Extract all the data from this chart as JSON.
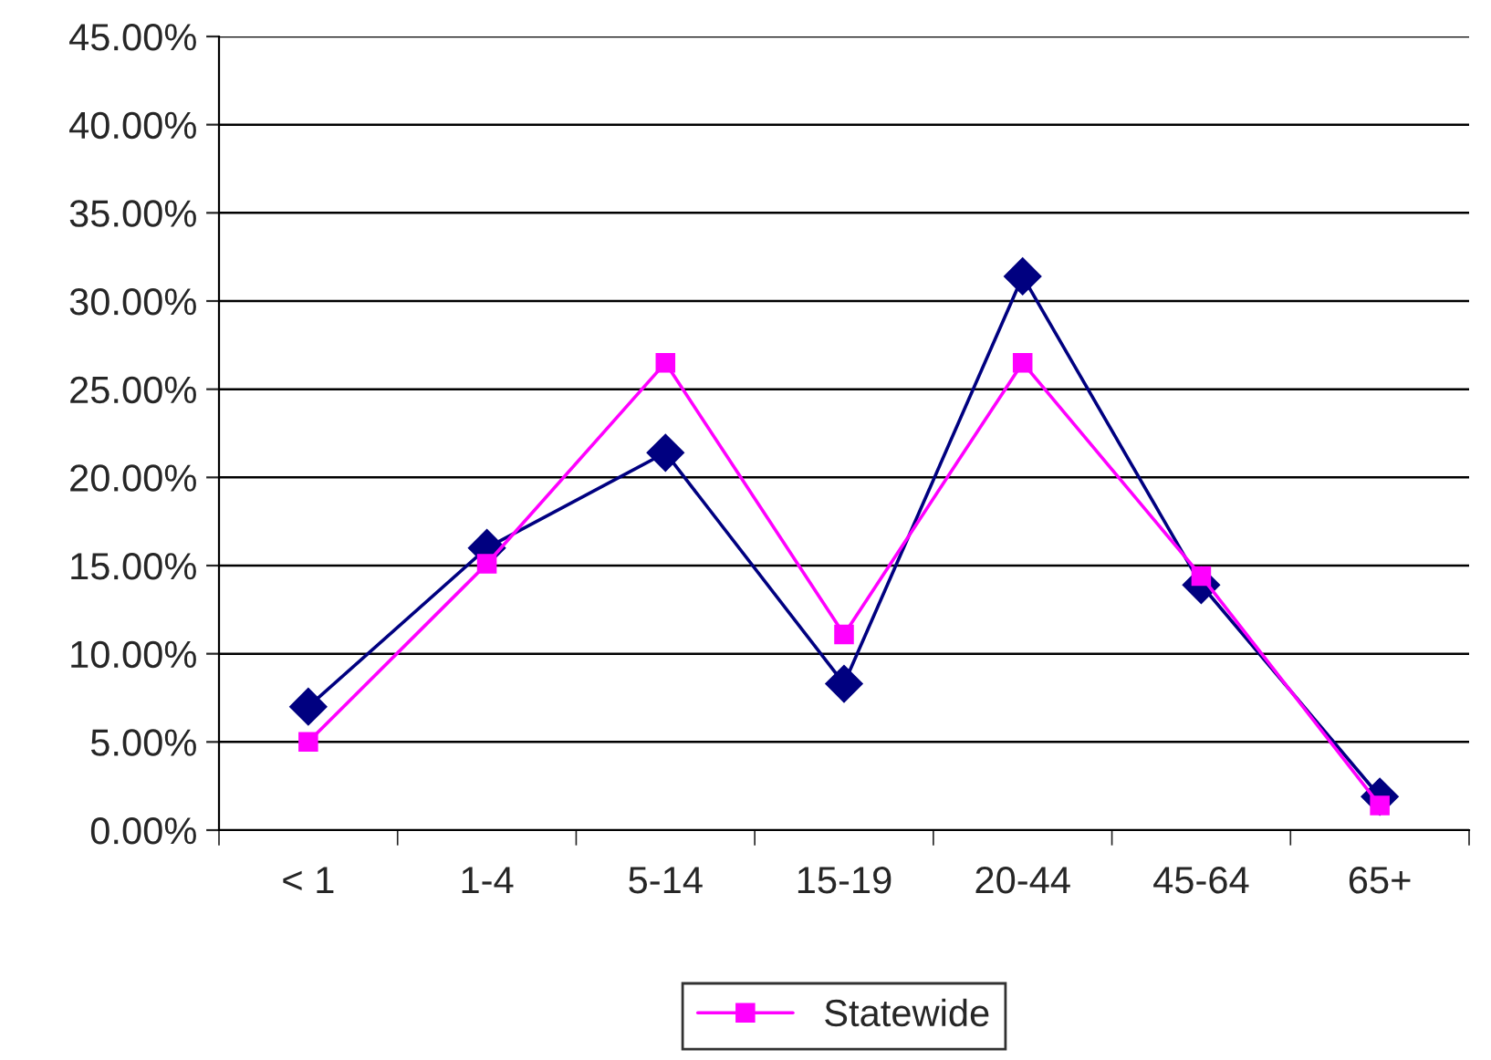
{
  "chart_data": {
    "type": "line",
    "categories": [
      "< 1",
      "1-4",
      "5-14",
      "15-19",
      "20-44",
      "45-64",
      "65+"
    ],
    "series": [
      {
        "color": "#000080",
        "marker": "diamond",
        "values": [
          7.0,
          16.0,
          21.4,
          8.3,
          31.4,
          13.9,
          1.9
        ]
      },
      {
        "name": "Statewide",
        "color": "#ff00ff",
        "marker": "square",
        "values": [
          5.0,
          15.1,
          26.5,
          11.1,
          26.5,
          14.4,
          1.4
        ]
      }
    ],
    "ylim": [
      0,
      45
    ],
    "yticks": [
      {
        "value": 0,
        "label": "0.00%"
      },
      {
        "value": 5,
        "label": "5.00%"
      },
      {
        "value": 10,
        "label": "10.00%"
      },
      {
        "value": 15,
        "label": "15.00%"
      },
      {
        "value": 20,
        "label": "20.00%"
      },
      {
        "value": 25,
        "label": "25.00%"
      },
      {
        "value": 30,
        "label": "30.00%"
      },
      {
        "value": 35,
        "label": "35.00%"
      },
      {
        "value": 40,
        "label": "40.00%"
      },
      {
        "value": 45,
        "label": "45.00%"
      }
    ],
    "grid": "y",
    "legend": "bottom",
    "line_style": "solid"
  }
}
